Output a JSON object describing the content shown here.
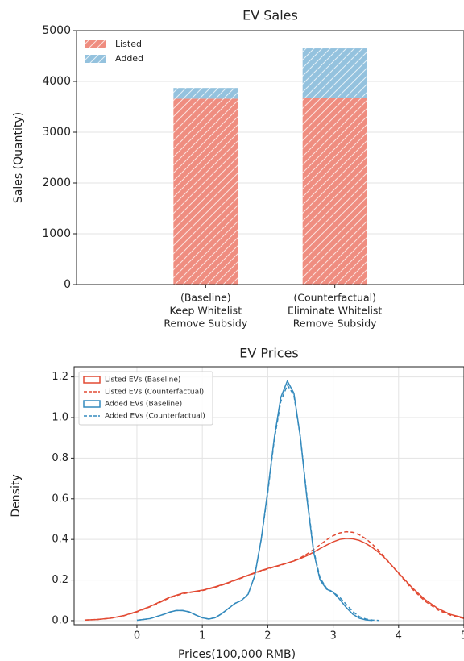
{
  "chart_data": [
    {
      "type": "bar",
      "stacked": true,
      "hatch": true,
      "title": "EV Sales",
      "ylabel": "Sales (Quantity)",
      "categories": [
        [
          "(Baseline)",
          "Keep Whitelist",
          "Remove Subsidy"
        ],
        [
          "(Counterfactual)",
          "Eliminate Whitelist",
          "Remove Subsidy"
        ]
      ],
      "series": [
        {
          "name": "Listed",
          "color": "#ef8d80",
          "values": [
            3660,
            3680
          ]
        },
        {
          "name": "Added",
          "color": "#94c2de",
          "values": [
            210,
            970
          ]
        }
      ],
      "ylim": [
        0,
        5000
      ],
      "yticks": [
        0,
        1000,
        2000,
        3000,
        4000,
        5000
      ],
      "grid": "y",
      "legend": "upper left"
    },
    {
      "type": "line",
      "title": "EV Prices",
      "xlabel": "Prices(100,000 RMB)",
      "ylabel": "Density",
      "x": [
        -0.8,
        -0.6,
        -0.4,
        -0.2,
        0,
        0.2,
        0.4,
        0.5,
        0.6,
        0.7,
        0.8,
        0.9,
        1.0,
        1.1,
        1.2,
        1.3,
        1.4,
        1.5,
        1.6,
        1.7,
        1.8,
        1.9,
        2.0,
        2.1,
        2.2,
        2.3,
        2.4,
        2.5,
        2.6,
        2.7,
        2.8,
        2.9,
        3.0,
        3.1,
        3.2,
        3.3,
        3.4,
        3.5,
        3.6,
        3.7,
        3.8,
        4.0,
        4.2,
        4.4,
        4.6,
        4.8,
        5.0
      ],
      "series": [
        {
          "name": "Listed EVs (Baseline)",
          "color": "#e24a33",
          "linestyle": "solid",
          "values": [
            0.003,
            0.006,
            0.012,
            0.025,
            0.045,
            0.07,
            0.1,
            0.115,
            0.125,
            0.135,
            0.14,
            0.145,
            0.15,
            0.158,
            0.167,
            0.177,
            0.188,
            0.2,
            0.212,
            0.224,
            0.236,
            0.247,
            0.257,
            0.266,
            0.275,
            0.284,
            0.294,
            0.306,
            0.32,
            0.337,
            0.355,
            0.372,
            0.388,
            0.4,
            0.405,
            0.403,
            0.395,
            0.38,
            0.36,
            0.335,
            0.305,
            0.235,
            0.165,
            0.105,
            0.06,
            0.03,
            0.014
          ]
        },
        {
          "name": "Listed EVs (Counterfactual)",
          "color": "#e24a33",
          "linestyle": "dashed",
          "values": [
            0.003,
            0.006,
            0.012,
            0.024,
            0.043,
            0.068,
            0.097,
            0.112,
            0.123,
            0.132,
            0.138,
            0.143,
            0.148,
            0.156,
            0.165,
            0.175,
            0.186,
            0.198,
            0.21,
            0.222,
            0.234,
            0.245,
            0.255,
            0.264,
            0.273,
            0.283,
            0.295,
            0.31,
            0.328,
            0.35,
            0.374,
            0.398,
            0.418,
            0.432,
            0.438,
            0.435,
            0.423,
            0.403,
            0.376,
            0.344,
            0.308,
            0.232,
            0.158,
            0.097,
            0.053,
            0.026,
            0.011
          ]
        },
        {
          "name": "Added EVs (Baseline)",
          "color": "#348abd",
          "linestyle": "solid",
          "values": [
            null,
            null,
            null,
            null,
            0.002,
            0.01,
            0.03,
            0.042,
            0.05,
            0.05,
            0.043,
            0.028,
            0.014,
            0.008,
            0.015,
            0.035,
            0.06,
            0.085,
            0.1,
            0.13,
            0.22,
            0.4,
            0.64,
            0.9,
            1.1,
            1.18,
            1.12,
            0.9,
            0.6,
            0.34,
            0.2,
            0.155,
            0.14,
            0.105,
            0.065,
            0.032,
            0.012,
            0.004,
            0.001,
            null,
            null,
            null,
            null,
            null,
            null,
            null,
            null
          ]
        },
        {
          "name": "Added EVs (Counterfactual)",
          "color": "#348abd",
          "linestyle": "dashed",
          "values": [
            null,
            null,
            null,
            null,
            0.002,
            0.01,
            0.03,
            0.042,
            0.05,
            0.05,
            0.043,
            0.028,
            0.014,
            0.008,
            0.015,
            0.035,
            0.06,
            0.085,
            0.1,
            0.13,
            0.22,
            0.4,
            0.63,
            0.89,
            1.08,
            1.16,
            1.11,
            0.9,
            0.61,
            0.35,
            0.21,
            0.16,
            0.14,
            0.115,
            0.08,
            0.045,
            0.02,
            0.008,
            0.003,
            0.001,
            null,
            null,
            null,
            null,
            null,
            null,
            null
          ]
        }
      ],
      "xlim": [
        -0.96,
        5.0
      ],
      "xticks": [
        0,
        1,
        2,
        3,
        4,
        5
      ],
      "ylim": [
        -0.02,
        1.25
      ],
      "yticks": [
        {
          "value": 0,
          "label": "0.0"
        },
        0.2,
        0.4,
        0.6,
        0.8,
        {
          "value": 1,
          "label": "1.0"
        },
        1.2
      ],
      "grid": "both",
      "legend": "upper left"
    }
  ]
}
